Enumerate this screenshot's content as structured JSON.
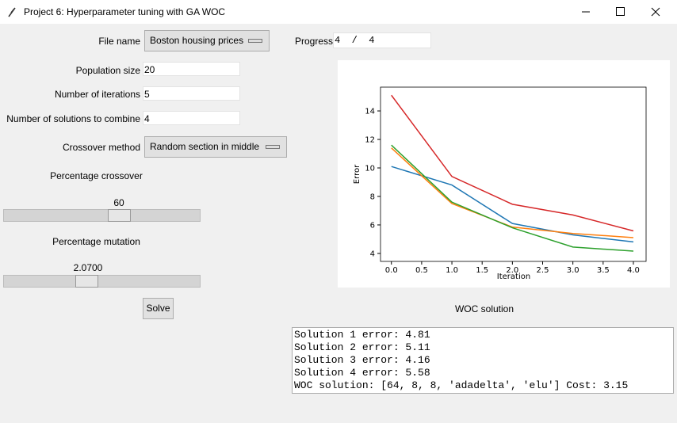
{
  "window": {
    "title": "Project 6: Hyperparameter tuning with GA WOC"
  },
  "form": {
    "file_name": {
      "label": "File name",
      "value": "Boston housing prices"
    },
    "progress": {
      "label": "Progress",
      "value": "4  /  4"
    },
    "population_size": {
      "label": "Population size",
      "value": "20"
    },
    "iterations": {
      "label": "Number of iterations",
      "value": "5"
    },
    "solutions_to_combine": {
      "label": "Number of solutions to combine",
      "value": "4"
    },
    "crossover_method": {
      "label": "Crossover method",
      "value": "Random section in middle"
    },
    "crossover_percentage": {
      "label": "Percentage crossover",
      "value": "60"
    },
    "mutation_percentage": {
      "label": "Percentage mutation",
      "value": "2.0700"
    },
    "solve": "Solve"
  },
  "chart_data": {
    "type": "line",
    "xlabel": "Iteration",
    "ylabel": "Error",
    "x": [
      0,
      1,
      2,
      3,
      4
    ],
    "xlim": [
      -0.18,
      4.21
    ],
    "ylim": [
      3.44,
      15.67
    ],
    "xticks": [
      {
        "value": 0,
        "label": "0.0"
      },
      {
        "value": 0.5,
        "label": "0.5"
      },
      {
        "value": 1,
        "label": "1.0"
      },
      {
        "value": 1.5,
        "label": "1.5"
      },
      {
        "value": 2,
        "label": "2.0"
      },
      {
        "value": 2.5,
        "label": "2.5"
      },
      {
        "value": 3,
        "label": "3.0"
      },
      {
        "value": 3.5,
        "label": "3.5"
      },
      {
        "value": 4,
        "label": "4.0"
      }
    ],
    "yticks": [
      4,
      6,
      8,
      10,
      12,
      14
    ],
    "series": [
      {
        "color": "#1f77b4",
        "values": [
          10.1,
          8.8,
          6.1,
          5.3,
          4.81
        ]
      },
      {
        "color": "#ff7f0e",
        "values": [
          11.4,
          7.5,
          5.85,
          5.4,
          5.11
        ]
      },
      {
        "color": "#2ca02c",
        "values": [
          11.6,
          7.6,
          5.8,
          4.45,
          4.16
        ]
      },
      {
        "color": "#d62728",
        "values": [
          15.1,
          9.4,
          7.45,
          6.7,
          5.58
        ]
      }
    ]
  },
  "woc": {
    "title": "WOC solution",
    "lines": [
      "Solution 1 error: 4.81",
      "Solution 2 error: 5.11",
      "Solution 3 error: 4.16",
      "Solution 4 error: 5.58",
      "WOC solution: [64, 8, 8, 'adadelta', 'elu'] Cost: 3.15"
    ]
  }
}
